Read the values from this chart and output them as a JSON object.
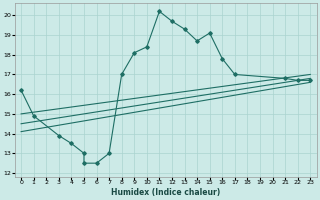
{
  "xlabel": "Humidex (Indice chaleur)",
  "bg_color": "#cceae7",
  "grid_color": "#aad4d0",
  "line_color": "#1e6e64",
  "xlim": [
    -0.5,
    23.5
  ],
  "ylim": [
    11.8,
    20.6
  ],
  "yticks": [
    12,
    13,
    14,
    15,
    16,
    17,
    18,
    19,
    20
  ],
  "xticks": [
    0,
    1,
    2,
    3,
    4,
    5,
    6,
    7,
    8,
    9,
    10,
    11,
    12,
    13,
    14,
    15,
    16,
    17,
    18,
    19,
    20,
    21,
    22,
    23
  ],
  "line1_x": [
    0,
    1,
    3,
    4,
    5,
    5,
    6,
    7,
    8,
    9,
    10,
    11,
    12,
    13,
    14,
    15,
    16,
    17,
    21,
    22,
    23
  ],
  "line1_y": [
    16.2,
    14.9,
    13.9,
    13.5,
    13.0,
    12.5,
    12.5,
    13.0,
    17.0,
    18.1,
    18.4,
    20.2,
    19.7,
    19.3,
    18.7,
    19.1,
    17.8,
    17.0,
    16.8,
    16.7,
    16.7
  ],
  "line2_x": [
    0,
    23
  ],
  "line2_y": [
    14.1,
    16.6
  ],
  "line3_x": [
    0,
    23
  ],
  "line3_y": [
    14.5,
    16.8
  ],
  "line4_x": [
    0,
    23
  ],
  "line4_y": [
    15.0,
    17.0
  ]
}
